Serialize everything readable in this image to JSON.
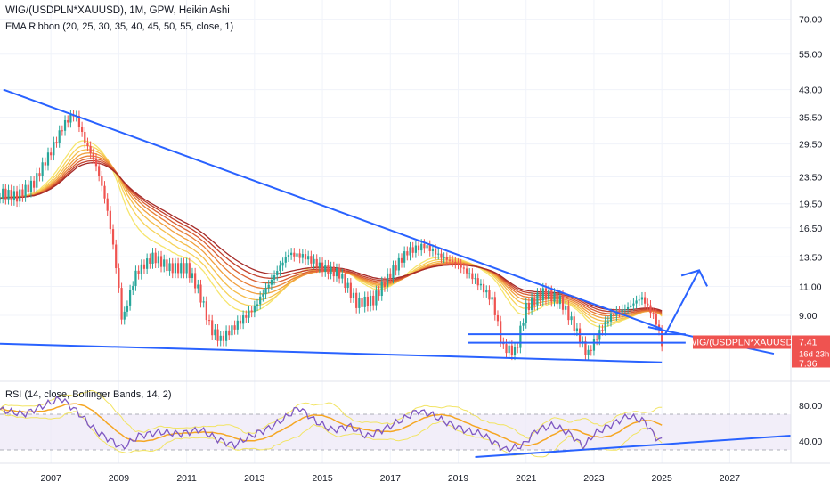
{
  "header": {
    "title": "WIG/(USDPLN*XAUUSD), 1M, GPW, Heikin Ashi",
    "ema_ribbon": "EMA Ribbon (20, 25, 30, 35, 40, 45, 50, 55, close, 1)",
    "rsi": "RSI (14, close, Bollinger Bands, 14, 2)"
  },
  "price_tags": {
    "symbol": "WIG/(USDPLN*XAUUSD)",
    "last": "7.41",
    "countdown": "16d 23h",
    "level": "7.36"
  },
  "colors": {
    "up": "#26a69a",
    "down": "#ef5350",
    "trendline": "#2962ff",
    "rsi_line": "#7e57c2",
    "rsi_ma": "#f5a623",
    "bollinger": "#f2e463",
    "ema_ribbon": [
      "#f6e56c",
      "#f7d35a",
      "#f5bd4a",
      "#f1a03e",
      "#e88038",
      "#d95f33",
      "#c3412d",
      "#a52a27"
    ]
  },
  "chart_data": [
    {
      "type": "candlestick",
      "name": "price",
      "scale": "log",
      "y_ticks": [
        "70.00",
        "55.00",
        "43.00",
        "35.50",
        "29.50",
        "23.50",
        "19.50",
        "16.50",
        "13.50",
        "11.00",
        "9.00",
        "7.41",
        "7.36"
      ],
      "x_ticks": [
        "2007",
        "2009",
        "2011",
        "2013",
        "2015",
        "2017",
        "2019",
        "2021",
        "2023",
        "2025",
        "2027"
      ],
      "x_range": [
        2005.5,
        2028.8
      ],
      "y_range": [
        5.7,
        80
      ],
      "series": [
        {
          "role": "price",
          "x": [
            2005.5,
            2006.0,
            2006.5,
            2007.0,
            2007.4,
            2007.7,
            2008.0,
            2008.3,
            2008.6,
            2008.9,
            2009.1,
            2009.5,
            2010.0,
            2010.5,
            2011.0,
            2011.3,
            2011.7,
            2012.0,
            2012.5,
            2013.0,
            2013.5,
            2014.0,
            2014.5,
            2015.0,
            2015.5,
            2016.0,
            2016.5,
            2017.0,
            2017.5,
            2018.0,
            2018.5,
            2019.0,
            2019.5,
            2020.0,
            2020.3,
            2020.7,
            2021.0,
            2021.5,
            2022.0,
            2022.5,
            2022.8,
            2023.0,
            2023.5,
            2024.0,
            2024.4,
            2024.8,
            2025.0
          ],
          "y": [
            21.0,
            20.5,
            22.5,
            28.0,
            34.0,
            36.5,
            30.0,
            26.0,
            20.0,
            13.0,
            8.5,
            12.0,
            13.5,
            12.5,
            12.5,
            11.0,
            8.2,
            7.6,
            8.5,
            9.5,
            11.5,
            13.8,
            13.5,
            12.5,
            12.0,
            9.8,
            10.0,
            12.0,
            14.0,
            14.6,
            13.5,
            12.8,
            11.5,
            10.0,
            7.2,
            7.0,
            9.5,
            10.5,
            10.0,
            8.0,
            6.8,
            7.5,
            9.0,
            9.5,
            10.2,
            8.8,
            7.41
          ]
        }
      ],
      "trendlines": [
        {
          "name": "upper-descending",
          "x": [
            2005.6,
            2025.0
          ],
          "y": [
            43.0,
            8.2
          ]
        },
        {
          "name": "lower-support",
          "x": [
            2005.5,
            2025.0
          ],
          "y": [
            7.4,
            6.5
          ]
        },
        {
          "name": "upper-extension",
          "x": [
            2024.6,
            2028.3
          ],
          "y": [
            8.3,
            6.9
          ]
        },
        {
          "name": "horizontal-resistance",
          "x": [
            2019.3,
            2025.7
          ],
          "y": [
            7.9,
            7.9
          ]
        },
        {
          "name": "horizontal-support",
          "x": [
            2019.3,
            2025.7
          ],
          "y": [
            7.45,
            7.45
          ]
        }
      ],
      "projection_arrow": {
        "x": [
          2025.1,
          2026.1
        ],
        "y": [
          7.9,
          12.3
        ]
      }
    },
    {
      "type": "line",
      "name": "RSI",
      "y_ticks": [
        "80.00",
        "40.00"
      ],
      "y_range": [
        15,
        105
      ],
      "bands": [
        30,
        70
      ],
      "series": [
        {
          "role": "rsi",
          "x": [
            2005.5,
            2006.2,
            2006.8,
            2007.3,
            2007.8,
            2008.3,
            2008.8,
            2009.1,
            2009.6,
            2010.2,
            2010.8,
            2011.4,
            2011.9,
            2012.4,
            2012.9,
            2013.4,
            2013.9,
            2014.3,
            2014.8,
            2015.3,
            2015.8,
            2016.3,
            2016.8,
            2017.3,
            2017.8,
            2018.2,
            2018.7,
            2019.2,
            2019.7,
            2020.0,
            2020.4,
            2020.9,
            2021.3,
            2021.8,
            2022.3,
            2022.7,
            2023.0,
            2023.5,
            2024.0,
            2024.5,
            2024.8,
            2025.0
          ],
          "y": [
            75,
            70,
            80,
            88,
            72,
            52,
            40,
            32,
            46,
            50,
            48,
            53,
            42,
            35,
            46,
            54,
            66,
            78,
            62,
            52,
            57,
            45,
            53,
            63,
            74,
            70,
            60,
            52,
            48,
            40,
            30,
            35,
            52,
            58,
            48,
            33,
            48,
            58,
            68,
            62,
            45,
            40
          ]
        },
        {
          "role": "rsi-ma",
          "x": [
            2005.5,
            2007.0,
            2008.0,
            2009.5,
            2011.0,
            2012.5,
            2014.0,
            2015.5,
            2017.0,
            2018.0,
            2019.5,
            2020.5,
            2021.5,
            2022.5,
            2023.5,
            2024.5,
            2025.0
          ],
          "y": [
            70,
            80,
            65,
            45,
            49,
            45,
            56,
            56,
            58,
            70,
            55,
            43,
            48,
            47,
            50,
            60,
            58
          ]
        }
      ],
      "trendline": {
        "x": [
          2019.5,
          2029.0
        ],
        "y": [
          22,
          46
        ]
      }
    }
  ]
}
